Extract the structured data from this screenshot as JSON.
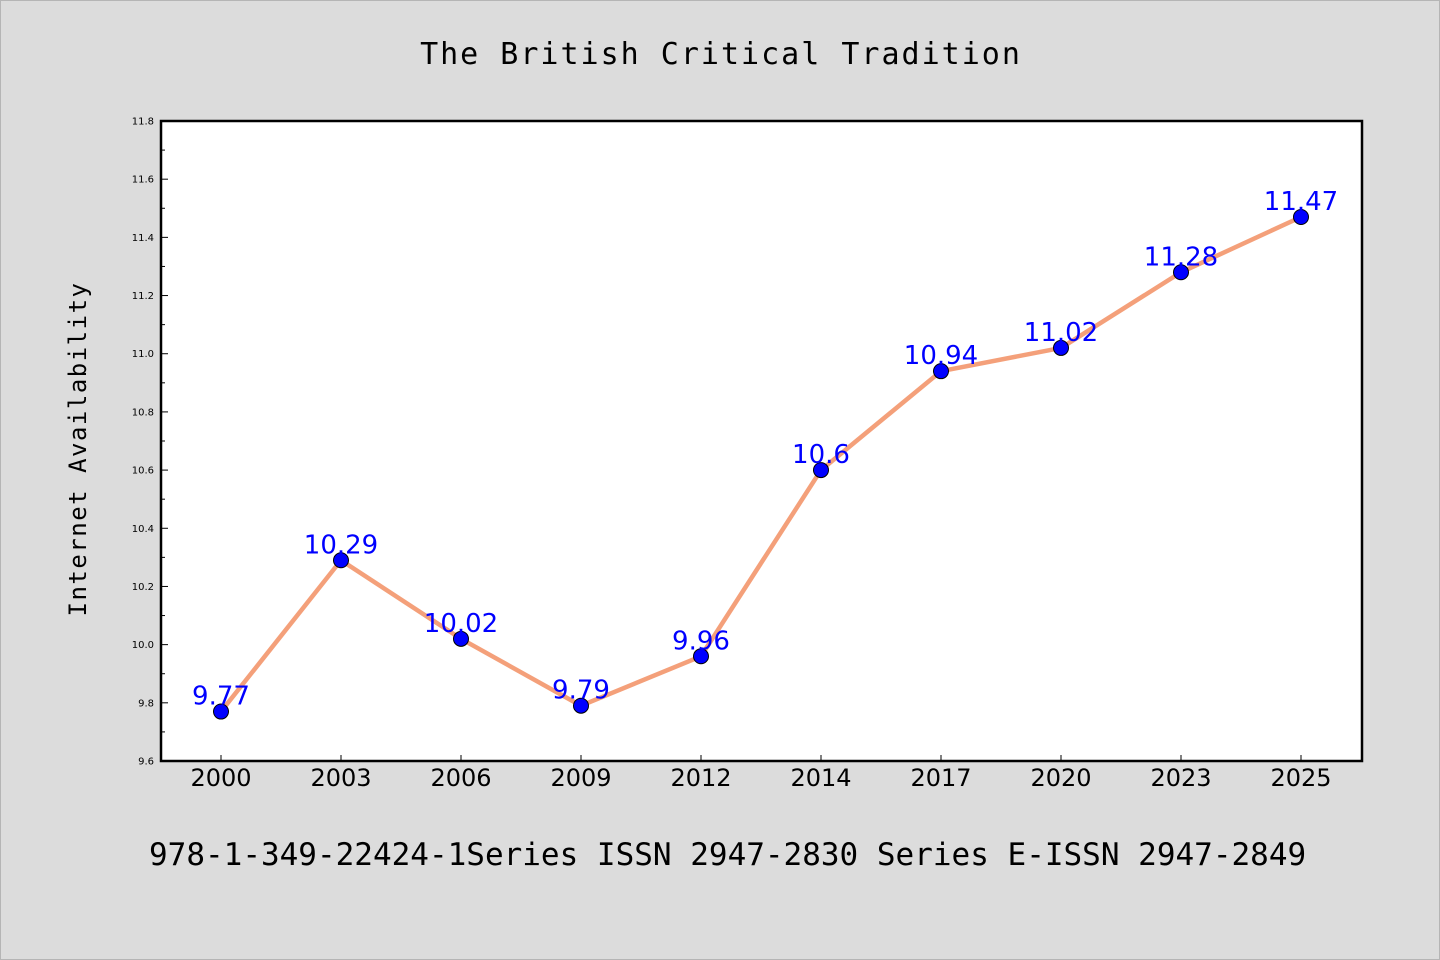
{
  "chart_data": {
    "type": "line",
    "title": "The British Critical Tradition",
    "xlabel": "",
    "ylabel": "Internet Availability",
    "categories": [
      "2000",
      "2003",
      "2006",
      "2009",
      "2012",
      "2014",
      "2017",
      "2020",
      "2023",
      "2025"
    ],
    "series": [
      {
        "values": [
          9.77,
          10.29,
          10.02,
          9.79,
          9.96,
          10.6,
          10.94,
          11.02,
          11.28,
          11.47
        ],
        "data_labels": [
          "9.77",
          "10.29",
          "10.02",
          "9.79",
          "9.96",
          "10.6",
          "10.94",
          "11.02",
          "11.28",
          "11.47"
        ],
        "line_color": "#f4a07a",
        "marker_color": "#0000ff"
      }
    ],
    "ylim": [
      9.6,
      11.8
    ],
    "yticks": [
      "9.6",
      "9.8",
      "10.0",
      "10.2",
      "10.4",
      "10.6",
      "10.8",
      "11.0",
      "11.2",
      "11.4",
      "11.6",
      "11.8"
    ],
    "grid": false,
    "legend": "none"
  },
  "footer": {
    "text": "978-1-349-22424-1Series ISSN 2947-2830 Series E-ISSN 2947-2849"
  },
  "colors": {
    "background": "#dcdcdc",
    "plot_background": "#ffffff",
    "label_color": "#0000ff"
  }
}
